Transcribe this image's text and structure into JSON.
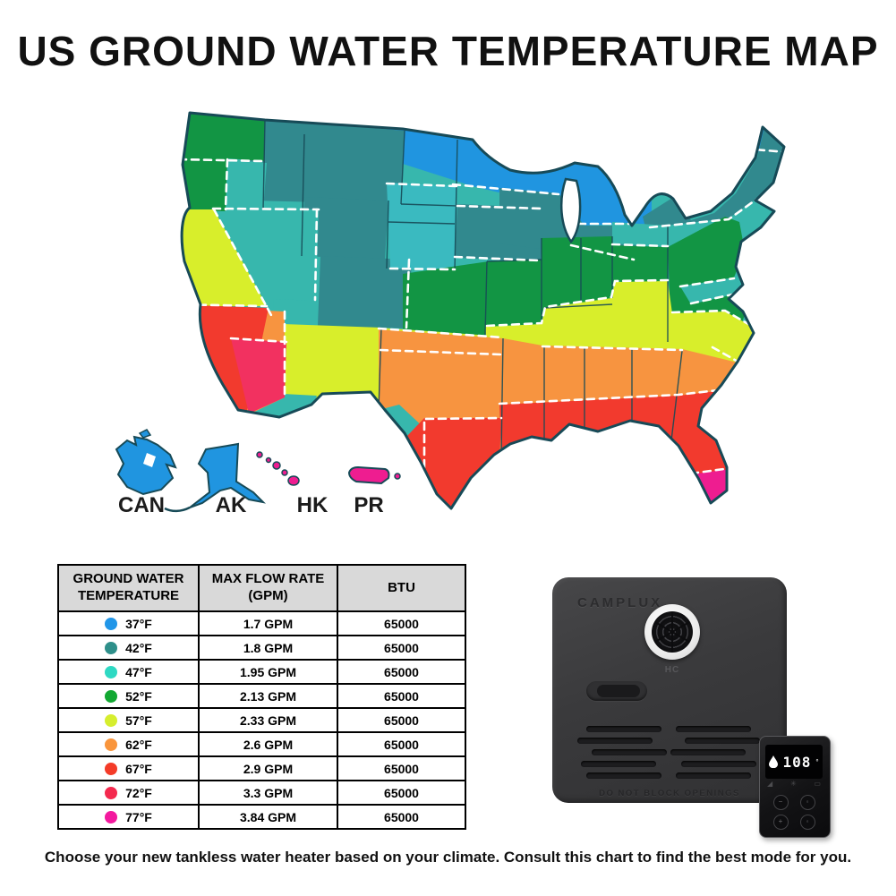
{
  "title": "US GROUND WATER TEMPERATURE MAP",
  "caption": "Choose your new tankless water heater based on your climate. Consult this chart to find the best mode for you.",
  "map": {
    "insets": [
      {
        "label": "CAN"
      },
      {
        "label": "AK"
      },
      {
        "label": "HK"
      },
      {
        "label": "PR"
      }
    ],
    "zone_colors": {
      "blue": "#2095e0",
      "slate": "#31898e",
      "teal": "#37b7ad",
      "cyan": "#3abac0",
      "green": "#129544",
      "yellow": "#d8ee2b",
      "orange": "#f79440",
      "red": "#f23a2e",
      "crimson": "#f23160",
      "magenta": "#ee1d90",
      "water": "#ffffff",
      "border": "#174a57"
    }
  },
  "table": {
    "headers": [
      "GROUND WATER TEMPERATURE",
      "MAX FLOW RATE (GPM)",
      "BTU"
    ],
    "rows": [
      {
        "temp": "37°F",
        "color": "#2196e8",
        "flow": "1.7 GPM",
        "btu": "65000"
      },
      {
        "temp": "42°F",
        "color": "#2e8f8a",
        "flow": "1.8 GPM",
        "btu": "65000"
      },
      {
        "temp": "47°F",
        "color": "#2ed9c3",
        "flow": "1.95 GPM",
        "btu": "65000"
      },
      {
        "temp": "52°F",
        "color": "#12a832",
        "flow": "2.13 GPM",
        "btu": "65000"
      },
      {
        "temp": "57°F",
        "color": "#d6ee2e",
        "flow": "2.33 GPM",
        "btu": "65000"
      },
      {
        "temp": "62°F",
        "color": "#f9953c",
        "flow": "2.6 GPM",
        "btu": "65000"
      },
      {
        "temp": "67°F",
        "color": "#f43b28",
        "flow": "2.9 GPM",
        "btu": "65000"
      },
      {
        "temp": "72°F",
        "color": "#f4294e",
        "flow": "3.3 GPM",
        "btu": "65000"
      },
      {
        "temp": "77°F",
        "color": "#f3199e",
        "flow": "3.84 GPM",
        "btu": "65000"
      }
    ]
  },
  "product": {
    "brand": "CAMPLUX",
    "vent_label": "HC",
    "warning": "DO NOT BLOCK OPENINGS",
    "remote": {
      "display": "108"
    }
  }
}
